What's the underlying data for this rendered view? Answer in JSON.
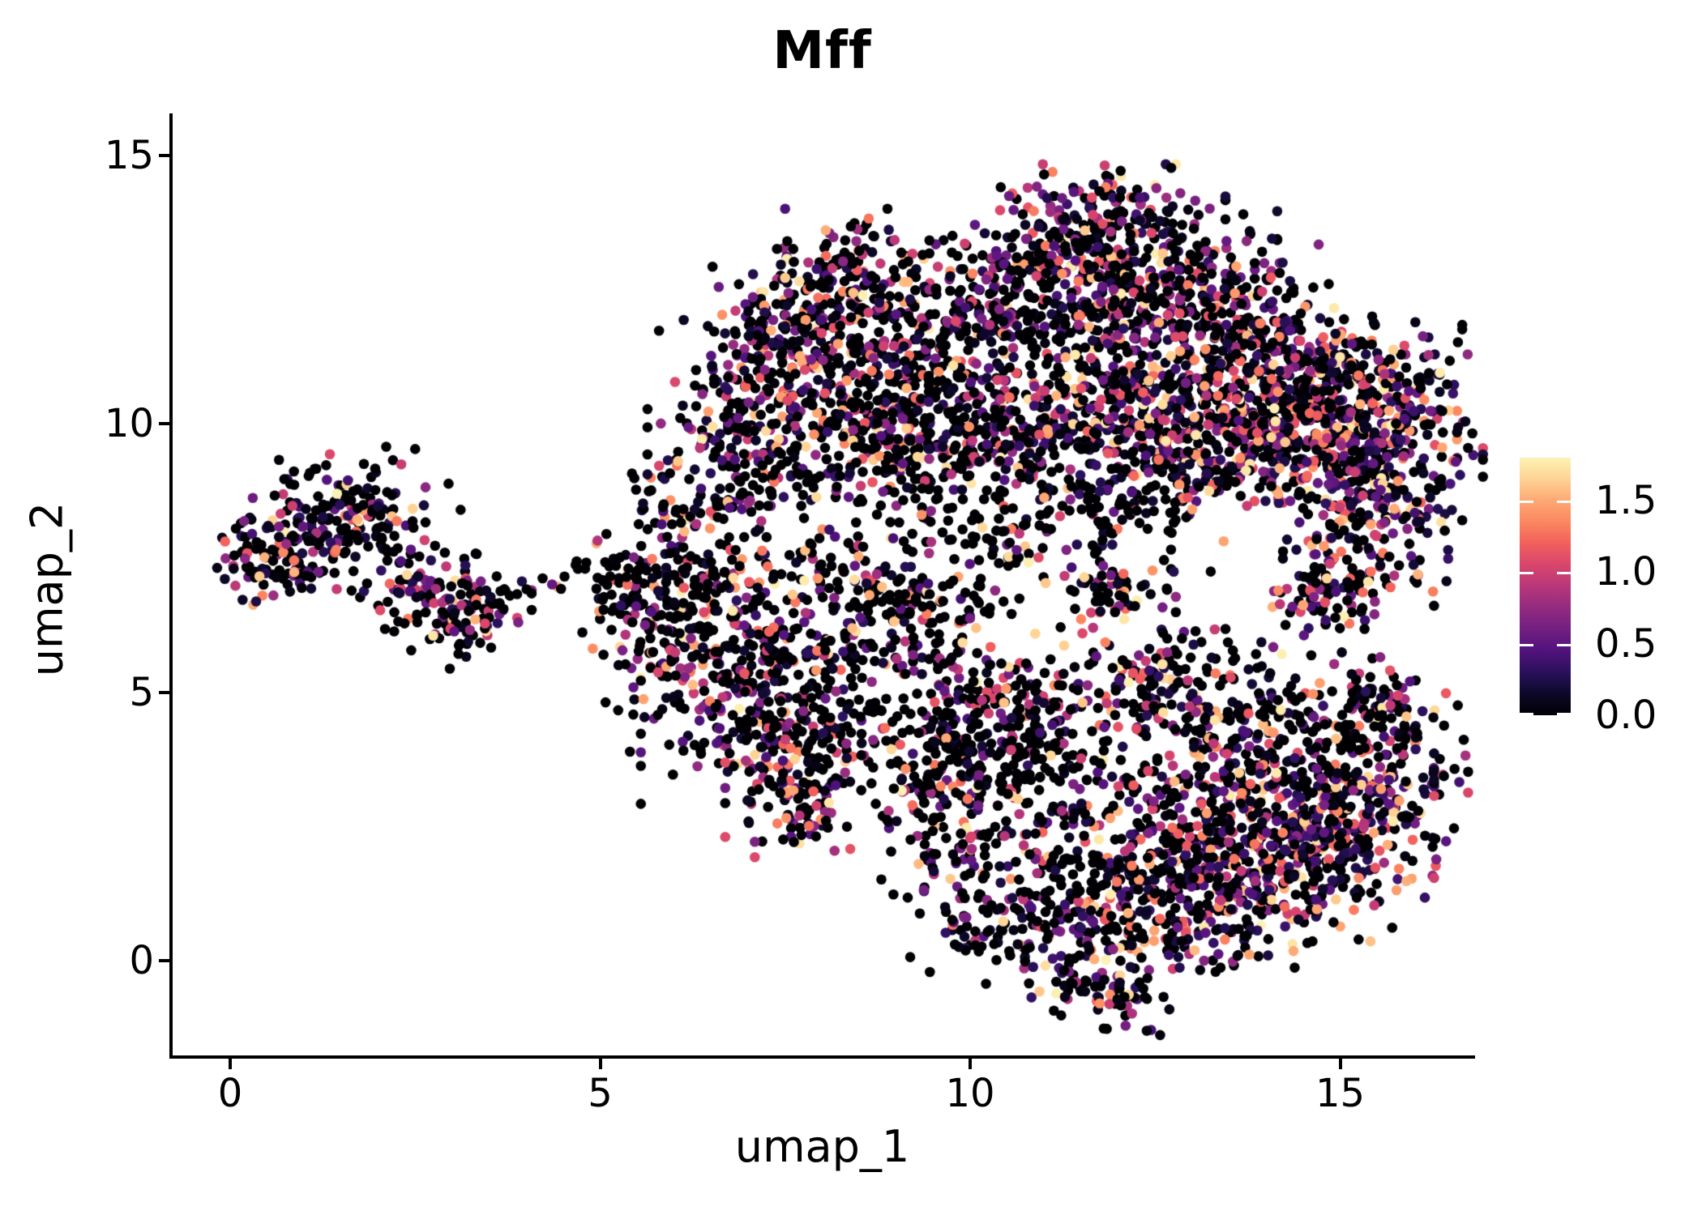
{
  "figure": {
    "title": "Mff"
  },
  "chart_data": {
    "type": "scatter",
    "plot_kind": "UMAP feature plot (gene expression)",
    "title": "Mff",
    "xlabel": "umap_1",
    "ylabel": "umap_2",
    "x_tick_values": [
      0,
      5,
      10,
      15
    ],
    "x_tick_labels": [
      "0",
      "5",
      "10",
      "15"
    ],
    "y_tick_values": [
      0,
      5,
      10,
      15
    ],
    "y_tick_labels": [
      "0",
      "5",
      "10",
      "15"
    ],
    "xlim": [
      -0.8,
      16.8
    ],
    "ylim": [
      -1.8,
      15.8
    ],
    "grid": false,
    "legend_position": "right",
    "colorbar": {
      "min": 0.0,
      "max": 1.8,
      "tick_values": [
        0.0,
        0.5,
        1.0,
        1.5
      ],
      "tick_labels": [
        "0.0",
        "0.5",
        "1.0",
        "1.5"
      ],
      "colormap": "magma",
      "stops": [
        [
          0.0,
          "#000004"
        ],
        [
          0.15,
          "#0d0829"
        ],
        [
          0.3,
          "#2a115c"
        ],
        [
          0.45,
          "#51127c"
        ],
        [
          0.6,
          "#721f81"
        ],
        [
          0.75,
          "#932b80"
        ],
        [
          0.9,
          "#b73779"
        ],
        [
          1.05,
          "#d8456c"
        ],
        [
          1.2,
          "#f1605d"
        ],
        [
          1.35,
          "#fb8761"
        ],
        [
          1.5,
          "#fea873"
        ],
        [
          1.65,
          "#fed395"
        ],
        [
          1.8,
          "#fcf3b5"
        ]
      ]
    },
    "points": {
      "total": 7607,
      "radius_px": 6.3,
      "zero_expression_color": "#000004",
      "value_distribution": "~30-60% zeros per region; nonzero values skewed toward 0.4-1.2 with rare values near 1.8",
      "seed": 1337
    },
    "clusters": [
      {
        "region": "left-small",
        "cx": 0.55,
        "cy": 7.35,
        "rx": 0.35,
        "ry": 0.35,
        "rot": 0,
        "n": 55,
        "z": 0.5,
        "s": "g"
      },
      {
        "region": "left-small",
        "cx": 1.05,
        "cy": 7.95,
        "rx": 0.5,
        "ry": 0.55,
        "rot": 0,
        "n": 85,
        "z": 0.48,
        "s": "g"
      },
      {
        "region": "left-small",
        "cx": 1.65,
        "cy": 8.55,
        "rx": 0.45,
        "ry": 0.4,
        "rot": 0,
        "n": 70,
        "z": 0.45,
        "s": "g"
      },
      {
        "region": "left-small",
        "cx": 1.35,
        "cy": 8.1,
        "rx": 0.8,
        "ry": 0.35,
        "rot": 35,
        "n": 45,
        "z": 0.5,
        "s": "g"
      },
      {
        "region": "left-small",
        "cx": 2.2,
        "cy": 7.4,
        "rx": 0.45,
        "ry": 0.35,
        "rot": -40,
        "n": 45,
        "z": 0.5,
        "s": "g"
      },
      {
        "region": "left-small",
        "cx": 2.85,
        "cy": 6.7,
        "rx": 0.5,
        "ry": 0.45,
        "rot": -35,
        "n": 75,
        "z": 0.48,
        "s": "g"
      },
      {
        "region": "left-small",
        "cx": 3.3,
        "cy": 6.3,
        "rx": 0.35,
        "ry": 0.35,
        "rot": 0,
        "n": 55,
        "z": 0.45,
        "s": "g"
      },
      {
        "region": "left-small-tail",
        "cx": 4.0,
        "cy": 7.0,
        "rx": 0.45,
        "ry": 0.18,
        "rot": 0,
        "n": 12,
        "z": 0.85,
        "s": "u"
      },
      {
        "region": "mid-left",
        "cx": 6.05,
        "cy": 7.6,
        "rx": 0.5,
        "ry": 0.7,
        "rot": 0,
        "n": 100,
        "z": 0.5,
        "s": "g"
      },
      {
        "region": "mid-left",
        "cx": 6.35,
        "cy": 8.35,
        "rx": 0.35,
        "ry": 0.25,
        "rot": 0,
        "n": 35,
        "z": 0.5,
        "s": "g"
      },
      {
        "region": "mid-left",
        "cx": 5.75,
        "cy": 6.3,
        "rx": 0.45,
        "ry": 0.55,
        "rot": 0,
        "n": 80,
        "z": 0.5,
        "s": "g"
      },
      {
        "region": "mid-left",
        "cx": 6.55,
        "cy": 5.4,
        "rx": 0.75,
        "ry": 0.85,
        "rot": 0,
        "n": 150,
        "z": 0.5,
        "s": "g"
      },
      {
        "region": "mid-left",
        "cx": 7.35,
        "cy": 6.6,
        "rx": 0.85,
        "ry": 0.85,
        "rot": 0,
        "n": 150,
        "z": 0.55,
        "s": "g"
      },
      {
        "region": "mid-left",
        "cx": 8.2,
        "cy": 5.7,
        "rx": 0.75,
        "ry": 0.75,
        "rot": 0,
        "n": 130,
        "z": 0.55,
        "s": "g"
      },
      {
        "region": "mid-left",
        "cx": 7.2,
        "cy": 4.35,
        "rx": 0.75,
        "ry": 0.65,
        "rot": 0,
        "n": 130,
        "z": 0.5,
        "s": "g"
      },
      {
        "region": "mid-left",
        "cx": 7.9,
        "cy": 3.4,
        "rx": 0.55,
        "ry": 0.6,
        "rot": 0,
        "n": 90,
        "z": 0.5,
        "s": "g"
      },
      {
        "region": "mid-left-tail",
        "cx": 7.75,
        "cy": 2.75,
        "rx": 0.3,
        "ry": 0.4,
        "rot": 0,
        "n": 40,
        "z": 0.55,
        "s": "g"
      },
      {
        "region": "mid-left",
        "cx": 8.85,
        "cy": 6.95,
        "rx": 0.45,
        "ry": 0.55,
        "rot": 0,
        "n": 65,
        "z": 0.6,
        "s": "g"
      },
      {
        "region": "mid-left-fringe",
        "cx": 5.25,
        "cy": 7.0,
        "rx": 0.3,
        "ry": 0.5,
        "rot": 0,
        "n": 22,
        "z": 0.7,
        "s": "u"
      },
      {
        "region": "top-middle",
        "cx": 8.4,
        "cy": 12.9,
        "rx": 0.65,
        "ry": 0.5,
        "rot": 0,
        "n": 120,
        "z": 0.42,
        "s": "g"
      },
      {
        "region": "top-middle",
        "cx": 7.6,
        "cy": 11.9,
        "rx": 0.65,
        "ry": 0.55,
        "rot": 0,
        "n": 120,
        "z": 0.45,
        "s": "g"
      },
      {
        "region": "top-middle",
        "cx": 8.8,
        "cy": 11.7,
        "rx": 0.75,
        "ry": 0.6,
        "rot": 0,
        "n": 140,
        "z": 0.48,
        "s": "g"
      },
      {
        "region": "top-middle",
        "cx": 7.3,
        "cy": 10.5,
        "rx": 0.85,
        "ry": 0.65,
        "rot": 0,
        "n": 170,
        "z": 0.45,
        "s": "g"
      },
      {
        "region": "top-middle",
        "cx": 8.6,
        "cy": 10.2,
        "rx": 0.85,
        "ry": 0.65,
        "rot": 0,
        "n": 175,
        "z": 0.45,
        "s": "g"
      },
      {
        "region": "top-middle",
        "cx": 9.6,
        "cy": 10.9,
        "rx": 0.55,
        "ry": 0.75,
        "rot": 0,
        "n": 110,
        "z": 0.5,
        "s": "g"
      },
      {
        "region": "top-middle",
        "cx": 6.85,
        "cy": 9.5,
        "rx": 0.55,
        "ry": 0.35,
        "rot": 0,
        "n": 70,
        "z": 0.5,
        "s": "g"
      },
      {
        "region": "top-middle",
        "cx": 9.3,
        "cy": 9.4,
        "rx": 0.65,
        "ry": 0.35,
        "rot": 0,
        "n": 80,
        "z": 0.55,
        "s": "g"
      },
      {
        "region": "top-bridge",
        "cx": 10.3,
        "cy": 12.3,
        "rx": 0.5,
        "ry": 0.8,
        "rot": 0,
        "n": 70,
        "z": 0.55,
        "s": "u"
      },
      {
        "region": "top-right-upper",
        "cx": 11.8,
        "cy": 13.95,
        "rx": 0.75,
        "ry": 0.4,
        "rot": 0,
        "n": 110,
        "z": 0.4,
        "s": "g"
      },
      {
        "region": "top-right-upper",
        "cx": 11.1,
        "cy": 13.1,
        "rx": 0.75,
        "ry": 0.5,
        "rot": 0,
        "n": 130,
        "z": 0.45,
        "s": "g"
      },
      {
        "region": "top-right-upper",
        "cx": 12.5,
        "cy": 13.0,
        "rx": 0.75,
        "ry": 0.55,
        "rot": 0,
        "n": 140,
        "z": 0.42,
        "s": "g"
      },
      {
        "region": "top-right-upper",
        "cx": 11.3,
        "cy": 12.1,
        "rx": 0.8,
        "ry": 0.55,
        "rot": 0,
        "n": 130,
        "z": 0.5,
        "s": "g"
      },
      {
        "region": "top-right-upper",
        "cx": 12.5,
        "cy": 12.0,
        "rx": 0.85,
        "ry": 0.55,
        "rot": 0,
        "n": 150,
        "z": 0.45,
        "s": "g"
      },
      {
        "region": "top-right-upper",
        "cx": 13.5,
        "cy": 12.3,
        "rx": 0.55,
        "ry": 0.5,
        "rot": 0,
        "n": 85,
        "z": 0.45,
        "s": "g"
      },
      {
        "region": "top-right-upper",
        "cx": 14.15,
        "cy": 11.5,
        "rx": 0.6,
        "ry": 0.5,
        "rot": 0,
        "n": 100,
        "z": 0.4,
        "s": "g"
      },
      {
        "region": "top-right-band",
        "cx": 11.2,
        "cy": 10.3,
        "rx": 0.8,
        "ry": 0.7,
        "rot": 0,
        "n": 160,
        "z": 0.45,
        "s": "g"
      },
      {
        "region": "top-right-band",
        "cx": 12.3,
        "cy": 10.3,
        "rx": 0.9,
        "ry": 0.7,
        "rot": 0,
        "n": 210,
        "z": 0.35,
        "s": "g"
      },
      {
        "region": "top-right-band",
        "cx": 13.5,
        "cy": 10.1,
        "rx": 0.9,
        "ry": 0.7,
        "rot": 0,
        "n": 250,
        "z": 0.3,
        "s": "g"
      },
      {
        "region": "top-right-band",
        "cx": 14.6,
        "cy": 9.95,
        "rx": 0.9,
        "ry": 0.7,
        "rot": 0,
        "n": 270,
        "z": 0.28,
        "s": "g"
      },
      {
        "region": "top-right-band",
        "cx": 15.5,
        "cy": 9.75,
        "rx": 0.65,
        "ry": 0.7,
        "rot": 0,
        "n": 210,
        "z": 0.28,
        "s": "g"
      },
      {
        "region": "top-right-band",
        "cx": 13.0,
        "cy": 9.3,
        "rx": 1.0,
        "ry": 0.45,
        "rot": 0,
        "n": 150,
        "z": 0.4,
        "s": "g"
      },
      {
        "region": "top-right-band",
        "cx": 15.0,
        "cy": 10.9,
        "rx": 0.75,
        "ry": 0.45,
        "rot": 0,
        "n": 140,
        "z": 0.35,
        "s": "g"
      },
      {
        "region": "top-right-band",
        "cx": 10.5,
        "cy": 9.5,
        "rx": 0.55,
        "ry": 0.45,
        "rot": 0,
        "n": 70,
        "z": 0.6,
        "s": "g"
      },
      {
        "region": "right-peninsula",
        "cx": 15.55,
        "cy": 8.5,
        "rx": 0.5,
        "ry": 0.45,
        "rot": 0,
        "n": 85,
        "z": 0.38,
        "s": "g"
      },
      {
        "region": "right-peninsula",
        "cx": 15.25,
        "cy": 7.4,
        "rx": 0.55,
        "ry": 0.55,
        "rot": 0,
        "n": 100,
        "z": 0.4,
        "s": "g"
      },
      {
        "region": "right-peninsula",
        "cx": 14.7,
        "cy": 6.7,
        "rx": 0.35,
        "ry": 0.35,
        "rot": 0,
        "n": 45,
        "z": 0.45,
        "s": "g"
      },
      {
        "region": "band-fringe",
        "cx": 12.1,
        "cy": 8.4,
        "rx": 1.2,
        "ry": 0.45,
        "rot": 0,
        "n": 60,
        "z": 0.6,
        "s": "u"
      },
      {
        "region": "mini-clump",
        "cx": 11.9,
        "cy": 6.75,
        "rx": 0.4,
        "ry": 0.4,
        "rot": 0,
        "n": 55,
        "z": 0.5,
        "s": "g"
      },
      {
        "region": "sparse-column",
        "cx": 10.2,
        "cy": 7.5,
        "rx": 0.5,
        "ry": 1.1,
        "rot": 0,
        "n": 40,
        "z": 0.7,
        "s": "u"
      },
      {
        "region": "diag-fringe",
        "cx": 10.1,
        "cy": 7.95,
        "rx": 1.5,
        "ry": 0.4,
        "rot": -10,
        "n": 90,
        "z": 0.55,
        "s": "g"
      },
      {
        "region": "bottom-right",
        "cx": 10.45,
        "cy": 5.1,
        "rx": 0.8,
        "ry": 0.45,
        "rot": 0,
        "n": 100,
        "z": 0.55,
        "s": "g"
      },
      {
        "region": "bottom-right",
        "cx": 9.6,
        "cy": 4.3,
        "rx": 0.55,
        "ry": 0.55,
        "rot": 0,
        "n": 80,
        "z": 0.58,
        "s": "g"
      },
      {
        "region": "bottom-right",
        "cx": 9.35,
        "cy": 3.3,
        "rx": 0.4,
        "ry": 0.55,
        "rot": 0,
        "n": 55,
        "z": 0.6,
        "s": "g"
      },
      {
        "region": "bottom-right",
        "cx": 9.9,
        "cy": 2.0,
        "rx": 0.5,
        "ry": 0.65,
        "rot": 0,
        "n": 70,
        "z": 0.55,
        "s": "g"
      },
      {
        "region": "bottom-right",
        "cx": 10.4,
        "cy": 1.0,
        "rx": 0.55,
        "ry": 0.65,
        "rot": 0,
        "n": 85,
        "z": 0.5,
        "s": "g"
      },
      {
        "region": "bottom-right",
        "cx": 11.5,
        "cy": 0.3,
        "rx": 0.65,
        "ry": 0.55,
        "rot": 0,
        "n": 100,
        "z": 0.5,
        "s": "g"
      },
      {
        "region": "bottom-right-tip",
        "cx": 12.0,
        "cy": -0.55,
        "rx": 0.45,
        "ry": 0.38,
        "rot": 0,
        "n": 55,
        "z": 0.5,
        "s": "g"
      },
      {
        "region": "bottom-right",
        "cx": 12.6,
        "cy": 0.8,
        "rx": 0.65,
        "ry": 0.6,
        "rot": 0,
        "n": 110,
        "z": 0.45,
        "s": "g"
      },
      {
        "region": "bottom-right",
        "cx": 13.6,
        "cy": 1.3,
        "rx": 0.75,
        "ry": 0.65,
        "rot": 0,
        "n": 160,
        "z": 0.4,
        "s": "g"
      },
      {
        "region": "bottom-right",
        "cx": 14.6,
        "cy": 1.9,
        "rx": 0.75,
        "ry": 0.7,
        "rot": 0,
        "n": 190,
        "z": 0.34,
        "s": "g"
      },
      {
        "region": "bottom-right",
        "cx": 15.3,
        "cy": 2.9,
        "rx": 0.65,
        "ry": 0.8,
        "rot": 0,
        "n": 190,
        "z": 0.34,
        "s": "g"
      },
      {
        "region": "bottom-right",
        "cx": 14.4,
        "cy": 3.3,
        "rx": 0.85,
        "ry": 0.8,
        "rot": 0,
        "n": 200,
        "z": 0.4,
        "s": "g"
      },
      {
        "region": "bottom-right",
        "cx": 13.3,
        "cy": 2.7,
        "rx": 0.8,
        "ry": 0.7,
        "rot": 0,
        "n": 140,
        "z": 0.45,
        "s": "g"
      },
      {
        "region": "bottom-right",
        "cx": 12.4,
        "cy": 2.1,
        "rx": 0.6,
        "ry": 0.6,
        "rot": 0,
        "n": 75,
        "z": 0.5,
        "s": "g"
      },
      {
        "region": "bottom-right",
        "cx": 13.7,
        "cy": 4.5,
        "rx": 0.85,
        "ry": 0.55,
        "rot": 0,
        "n": 150,
        "z": 0.45,
        "s": "g"
      },
      {
        "region": "bottom-right",
        "cx": 12.75,
        "cy": 5.3,
        "rx": 0.65,
        "ry": 0.45,
        "rot": 0,
        "n": 90,
        "z": 0.5,
        "s": "g"
      },
      {
        "region": "bottom-right",
        "cx": 15.6,
        "cy": 4.7,
        "rx": 0.45,
        "ry": 0.55,
        "rot": 0,
        "n": 85,
        "z": 0.38,
        "s": "g"
      },
      {
        "region": "bottom-right",
        "cx": 11.4,
        "cy": 3.5,
        "rx": 0.75,
        "ry": 0.85,
        "rot": 0,
        "n": 90,
        "z": 0.6,
        "s": "g"
      },
      {
        "region": "bottom-right",
        "cx": 10.9,
        "cy": 4.4,
        "rx": 0.5,
        "ry": 0.4,
        "rot": 0,
        "n": 45,
        "z": 0.6,
        "s": "g"
      },
      {
        "region": "bottom-right",
        "cx": 10.6,
        "cy": 3.3,
        "rx": 0.7,
        "ry": 0.6,
        "rot": 0,
        "n": 110,
        "z": 0.5,
        "s": "g"
      },
      {
        "region": "bottom-right",
        "cx": 11.6,
        "cy": 1.3,
        "rx": 0.6,
        "ry": 0.6,
        "rot": 0,
        "n": 50,
        "z": 0.6,
        "s": "u"
      },
      {
        "region": "bridge",
        "cx": 9.6,
        "cy": 6.2,
        "rx": 0.7,
        "ry": 0.9,
        "rot": 0,
        "n": 55,
        "z": 0.72,
        "s": "u"
      },
      {
        "region": "bridge",
        "cx": 8.0,
        "cy": 8.9,
        "rx": 1.3,
        "ry": 0.45,
        "rot": 0,
        "n": 45,
        "z": 0.7,
        "s": "u"
      },
      {
        "region": "bridge",
        "cx": 4.75,
        "cy": 7.1,
        "rx": 0.35,
        "ry": 0.35,
        "rot": 0,
        "n": 8,
        "z": 0.8,
        "s": "u"
      }
    ]
  }
}
